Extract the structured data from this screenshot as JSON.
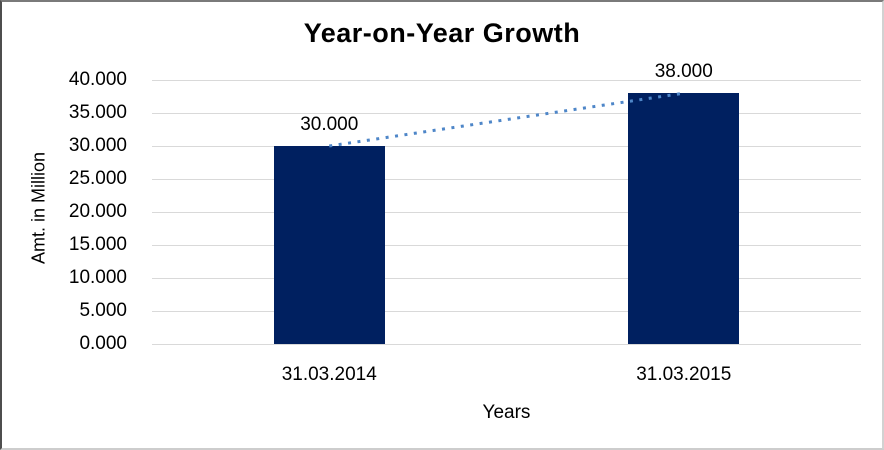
{
  "chart_data": {
    "type": "bar",
    "title": "Year-on-Year Growth",
    "xlabel": "Years",
    "ylabel": "Amt. in Million",
    "categories": [
      "31.03.2014",
      "31.03.2015"
    ],
    "values": [
      30,
      38
    ],
    "value_labels": [
      "30.000",
      "38.000"
    ],
    "ylim": [
      0,
      40
    ],
    "ytick_step": 5,
    "ytick_labels": [
      "40.000",
      "35.000",
      "30.000",
      "25.000",
      "20.000",
      "15.000",
      "10.000",
      "5.000",
      "0.000"
    ],
    "grid": true,
    "legend": "none",
    "trendline": {
      "style": "dotted",
      "connects": [
        "30.000",
        "38.000"
      ]
    },
    "colors": {
      "bar": "#002060",
      "trendline": "#4e86c8",
      "gridline": "#d9d9d9",
      "text": "#000000",
      "background": "#ffffff"
    }
  }
}
